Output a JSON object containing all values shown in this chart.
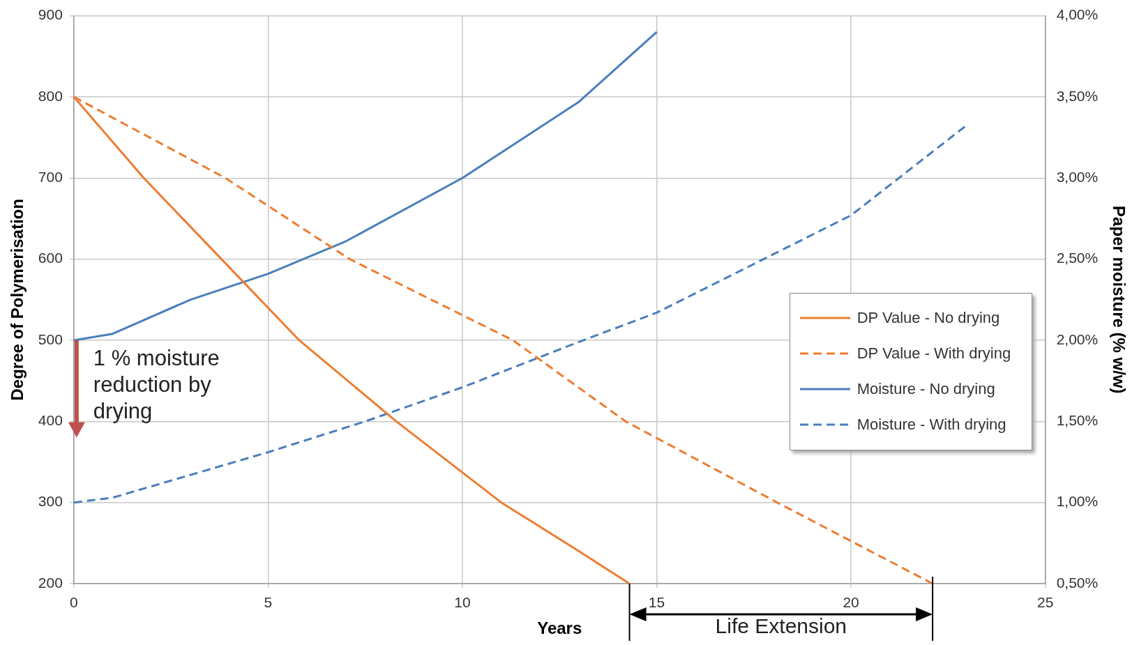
{
  "chart_data": {
    "type": "line",
    "xlabel": "Years",
    "ylabel": "Degree of Polymerisation",
    "y2label": "Paper moisture (% w/w)",
    "xlim": [
      0,
      25
    ],
    "xticks": [
      0,
      5,
      10,
      15,
      20,
      25
    ],
    "ylim": [
      200,
      900
    ],
    "yticks": [
      200,
      300,
      400,
      500,
      600,
      700,
      800,
      900
    ],
    "y2lim": [
      0.5,
      4
    ],
    "y2ticks": [
      {
        "value": 0.5,
        "label": "0,50%"
      },
      {
        "value": 1,
        "label": "1,00%"
      },
      {
        "value": 1.5,
        "label": "1,50%"
      },
      {
        "value": 2,
        "label": "2,00%"
      },
      {
        "value": 2.5,
        "label": "2,50%"
      },
      {
        "value": 3,
        "label": "3,00%"
      },
      {
        "value": 3.5,
        "label": "3,50%"
      },
      {
        "value": 4,
        "label": "4,00%"
      }
    ],
    "grid": true,
    "legend": "right",
    "marker": "none",
    "annotations": [
      {
        "text": "1 % moisture reduction by drying",
        "x": 0,
        "y": 500
      },
      "Life Extension"
    ],
    "series": [
      {
        "name": "DP Value - No drying",
        "color": "#ed7d31",
        "line_style": "solid",
        "x": [
          0,
          1.8,
          3.8,
          5.8,
          8.3,
          11,
          13,
          14.3
        ],
        "values": [
          800,
          700,
          600,
          500,
          400,
          300,
          240,
          200
        ]
      },
      {
        "name": "DP Value - With drying",
        "color": "#ed7d31",
        "line_style": "dashed",
        "x": [
          0,
          3.9,
          7.1,
          11.3,
          14.2,
          18.1,
          22.1
        ],
        "values": [
          800,
          700,
          600,
          500,
          400,
          300,
          200
        ]
      },
      {
        "name": "Moisture - No drying",
        "color": "#4a7ebb",
        "line_style": "solid",
        "axis": "y2",
        "x": [
          0,
          1,
          3,
          5,
          7,
          10,
          13,
          15
        ],
        "values": [
          2.0,
          2.04,
          2.25,
          2.41,
          2.61,
          3.0,
          3.47,
          3.9
        ]
      },
      {
        "name": "Moisture - With drying",
        "color": "#4a7ebb",
        "line_style": "dashed",
        "axis": "y2",
        "x": [
          0,
          1,
          5,
          7.5,
          10,
          13,
          15,
          20,
          23
        ],
        "values": [
          1.0,
          1.03,
          1.31,
          1.5,
          1.71,
          1.99,
          2.17,
          2.77,
          3.33
        ]
      }
    ]
  }
}
